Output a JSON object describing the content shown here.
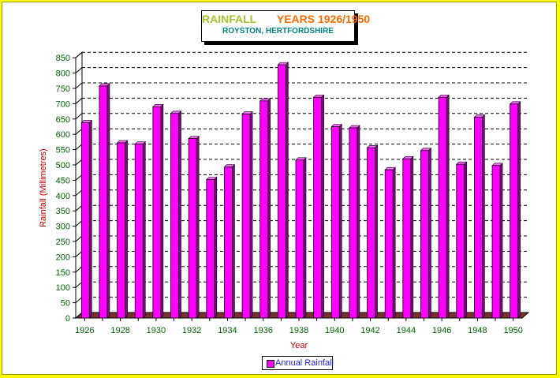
{
  "title": {
    "part1": "RAINFALL",
    "part2": "YEARS 1926/1950",
    "subtitle": "ROYSTON, HERTFORDSHIRE"
  },
  "colors": {
    "background": "#ffff00",
    "bar": "#ff00ff",
    "bar_top": "#ff66ff",
    "bar_side": "#8a008a",
    "axis_text": "#006400",
    "ylabel": "#c00000",
    "xlabel": "#c00000",
    "legend_text": "#1a1aff"
  },
  "chart_data": {
    "type": "bar",
    "title": "RAINFALL YEARS 1926/1950",
    "subtitle": "ROYSTON, HERTFORDSHIRE",
    "xlabel": "Year",
    "ylabel": "Rainfall (Millimetres)",
    "ylim": [
      0,
      850
    ],
    "ytick_step": 50,
    "grid": true,
    "legend_position": "bottom",
    "categories": [
      "1926",
      "1927",
      "1928",
      "1929",
      "1930",
      "1931",
      "1932",
      "1933",
      "1934",
      "1935",
      "1936",
      "1937",
      "1938",
      "1939",
      "1940",
      "1941",
      "1942",
      "1943",
      "1944",
      "1945",
      "1946",
      "1947",
      "1948",
      "1949",
      "1950"
    ],
    "x_tick_labels": [
      "1926",
      "1928",
      "1930",
      "1932",
      "1934",
      "1936",
      "1938",
      "1940",
      "1942",
      "1944",
      "1946",
      "1948",
      "1950"
    ],
    "series": [
      {
        "name": "Annual Rainfall",
        "values": [
          638,
          758,
          572,
          568,
          690,
          668,
          586,
          452,
          493,
          666,
          709,
          827,
          516,
          721,
          625,
          621,
          556,
          484,
          520,
          547,
          721,
          502,
          656,
          498,
          699
        ]
      }
    ]
  }
}
